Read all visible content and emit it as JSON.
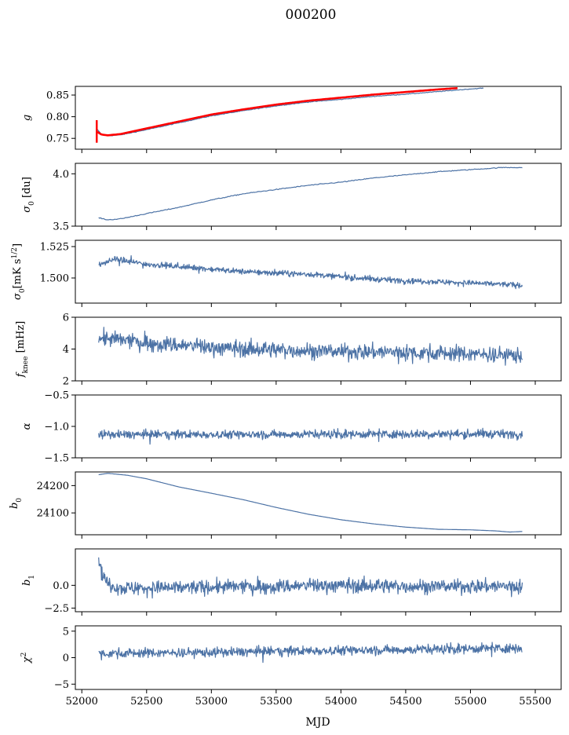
{
  "title": "000200",
  "xlabel": "MJD",
  "xlim": [
    51950,
    55700
  ],
  "xticks": [
    52000,
    52500,
    53000,
    53500,
    54000,
    54500,
    55000,
    55500
  ],
  "colors": {
    "series": "#4c72a5",
    "fit": "#ff0000",
    "frame": "#000000"
  },
  "chart_data": [
    {
      "type": "line",
      "ylabel": "g",
      "ylim": [
        0.725,
        0.87
      ],
      "yticks": [
        0.75,
        0.8,
        0.85
      ],
      "ytick_labels": [
        "0.75",
        "0.80",
        "0.85"
      ],
      "series": [
        {
          "x": [
            52120,
            52150,
            52200,
            52300,
            52500,
            52750,
            53000,
            53250,
            53500,
            53750,
            54000,
            54250,
            54500,
            54750,
            55000,
            55100
          ],
          "y": [
            0.77,
            0.76,
            0.756,
            0.758,
            0.77,
            0.786,
            0.802,
            0.814,
            0.825,
            0.834,
            0.84,
            0.847,
            0.852,
            0.858,
            0.864,
            0.866
          ]
        },
        {
          "color": "#ff0000",
          "x": [
            52120,
            52150,
            52200,
            52300,
            52500,
            52750,
            53000,
            53250,
            53500,
            53750,
            54000,
            54250,
            54500,
            54750,
            54900
          ],
          "y": [
            0.765,
            0.759,
            0.757,
            0.76,
            0.773,
            0.789,
            0.805,
            0.817,
            0.828,
            0.837,
            0.844,
            0.851,
            0.857,
            0.863,
            0.866
          ],
          "errorbar": {
            "x": 52115,
            "y0": 0.74,
            "y1": 0.792
          }
        }
      ]
    },
    {
      "type": "line",
      "ylabel": "σ0 [du]",
      "ylim": [
        3.5,
        4.1
      ],
      "yticks": [
        3.5,
        4.0
      ],
      "ytick_labels": [
        "3.5",
        "4.0"
      ],
      "series": [
        {
          "x": [
            52130,
            52200,
            52300,
            52500,
            52750,
            53000,
            53250,
            53500,
            53750,
            54000,
            54250,
            54500,
            54750,
            55000,
            55250,
            55400
          ],
          "y": [
            3.58,
            3.56,
            3.57,
            3.62,
            3.68,
            3.75,
            3.81,
            3.85,
            3.89,
            3.92,
            3.96,
            3.99,
            4.02,
            4.04,
            4.06,
            4.06
          ]
        }
      ]
    },
    {
      "type": "line",
      "ylabel": "σ0[mK s1/2]",
      "ylim": [
        1.48,
        1.53
      ],
      "yticks": [
        1.5,
        1.525
      ],
      "ytick_labels": [
        "1.500",
        "1.525"
      ],
      "series": [
        {
          "x": [
            52130,
            52250,
            52500,
            52750,
            53000,
            53250,
            53500,
            53750,
            54000,
            54250,
            54500,
            54750,
            55000,
            55250,
            55400
          ],
          "y": [
            1.51,
            1.515,
            1.511,
            1.509,
            1.507,
            1.505,
            1.504,
            1.503,
            1.501,
            1.499,
            1.498,
            1.497,
            1.496,
            1.495,
            1.494
          ],
          "noise": 0.004
        }
      ]
    },
    {
      "type": "line",
      "ylabel": "fknee [mHz]",
      "ylim": [
        2,
        6
      ],
      "yticks": [
        2,
        4,
        6
      ],
      "ytick_labels": [
        "2",
        "4",
        "6"
      ],
      "series": [
        {
          "x": [
            52130,
            52500,
            53000,
            53500,
            54000,
            54500,
            55000,
            55400
          ],
          "y": [
            4.7,
            4.4,
            4.1,
            3.95,
            3.85,
            3.8,
            3.7,
            3.6
          ],
          "noise": 0.9
        }
      ]
    },
    {
      "type": "line",
      "ylabel": "α",
      "ylim": [
        -1.5,
        -0.5
      ],
      "yticks": [
        -1.5,
        -1.0,
        -0.5
      ],
      "ytick_labels": [
        "−1.5",
        "−1.0",
        "−0.5"
      ],
      "series": [
        {
          "x": [
            52130,
            55400
          ],
          "y": [
            -1.13,
            -1.12
          ],
          "noise": 0.12
        }
      ]
    },
    {
      "type": "line",
      "ylabel": "b0",
      "ylim": [
        24020,
        24250
      ],
      "yticks": [
        24100,
        24200
      ],
      "ytick_labels": [
        "24100",
        "24200"
      ],
      "series": [
        {
          "x": [
            52130,
            52200,
            52350,
            52500,
            52750,
            53000,
            53250,
            53500,
            53750,
            54000,
            54250,
            54500,
            54750,
            55000,
            55200,
            55300,
            55400
          ],
          "y": [
            24240,
            24245,
            24238,
            24225,
            24195,
            24172,
            24148,
            24120,
            24095,
            24075,
            24060,
            24048,
            24040,
            24038,
            24034,
            24030,
            24032
          ]
        }
      ]
    },
    {
      "type": "line",
      "ylabel": "b1",
      "ylim": [
        -2.9,
        4.0
      ],
      "yticks": [
        -2.5,
        0.0
      ],
      "ytick_labels": [
        "−2.5",
        "0.0"
      ],
      "series": [
        {
          "x": [
            52130,
            52150,
            52200,
            52300,
            52500,
            53000,
            53500,
            54000,
            54500,
            55000,
            55400
          ],
          "y": [
            3.3,
            1.5,
            0.2,
            -0.3,
            -0.3,
            -0.2,
            -0.1,
            0.0,
            -0.1,
            -0.1,
            -0.1
          ],
          "noise": 1.4
        }
      ]
    },
    {
      "type": "line",
      "ylabel": "χ2",
      "ylim": [
        -6,
        6
      ],
      "yticks": [
        -5,
        0,
        5
      ],
      "ytick_labels": [
        "−5",
        "0",
        "5"
      ],
      "series": [
        {
          "x": [
            52130,
            52500,
            53000,
            53500,
            54000,
            54500,
            55000,
            55400
          ],
          "y": [
            0.8,
            0.9,
            1.0,
            1.2,
            1.4,
            1.5,
            1.7,
            1.8
          ],
          "noise": 1.6
        }
      ]
    }
  ]
}
